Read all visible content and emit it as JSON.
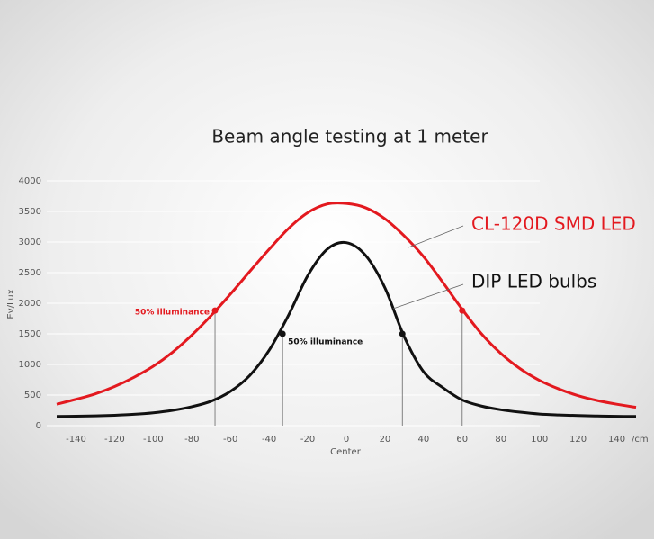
{
  "chart_data": {
    "type": "line",
    "title": "Beam angle testing at 1 meter",
    "y_label": "Ev/Lux",
    "x_label": "Center",
    "x_unit": "/cm",
    "x": [
      -150,
      -140,
      -130,
      -120,
      -110,
      -100,
      -90,
      -80,
      -70,
      -60,
      -50,
      -40,
      -30,
      -20,
      -10,
      0,
      10,
      20,
      30,
      40,
      50,
      60,
      70,
      80,
      90,
      100,
      110,
      120,
      130,
      140,
      150
    ],
    "series": [
      {
        "name": "CL-120D SMD LED",
        "color": "#e3191f",
        "values": [
          350,
          430,
          520,
          640,
          790,
          970,
          1200,
          1480,
          1800,
          2150,
          2520,
          2880,
          3220,
          3480,
          3620,
          3630,
          3560,
          3380,
          3100,
          2760,
          2340,
          1900,
          1500,
          1180,
          930,
          740,
          600,
          490,
          410,
          350,
          300
        ]
      },
      {
        "name": "DIP LED bulbs",
        "color": "#111111",
        "values": [
          150,
          155,
          160,
          170,
          185,
          210,
          250,
          310,
          400,
          560,
          820,
          1230,
          1800,
          2450,
          2880,
          2990,
          2780,
          2250,
          1450,
          880,
          620,
          420,
          320,
          260,
          220,
          190,
          175,
          165,
          158,
          152,
          150
        ]
      }
    ],
    "points": [
      {
        "x": -68,
        "y": 1880,
        "color": "#e3191f"
      },
      {
        "x": 60,
        "y": 1880,
        "color": "#e3191f"
      },
      {
        "x": -33,
        "y": 1500,
        "color": "#111111"
      },
      {
        "x": 29,
        "y": 1500,
        "color": "#111111"
      }
    ],
    "annotations": [
      {
        "text": "50% illuminance",
        "color": "#e3191f"
      },
      {
        "text": "50% illuminance",
        "color": "#111111"
      }
    ],
    "xlim": [
      -150,
      150
    ],
    "xticks": [
      -140,
      -120,
      -100,
      -80,
      -60,
      -40,
      -20,
      0,
      20,
      40,
      60,
      80,
      100,
      120,
      140
    ],
    "ylim": [
      0,
      4000
    ],
    "yticks": [
      0,
      500,
      1000,
      1500,
      2000,
      2500,
      3000,
      3500,
      4000
    ],
    "grid": true
  }
}
